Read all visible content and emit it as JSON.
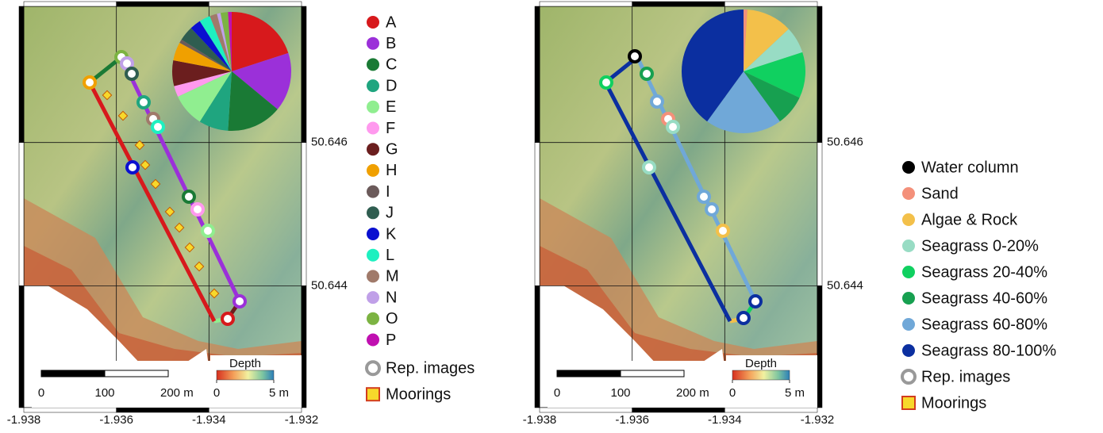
{
  "chart_data": [
    {
      "type": "map",
      "xlim": [
        -1.938,
        -1.932
      ],
      "ylim": [
        50.6423,
        50.6479
      ],
      "xticks": [
        -1.938,
        -1.936,
        -1.934,
        -1.932
      ],
      "yticks": [
        50.646,
        50.644
      ],
      "grid": true,
      "categories": [
        "A",
        "B",
        "C",
        "D",
        "E",
        "F",
        "G",
        "H",
        "I",
        "J",
        "K",
        "L",
        "M",
        "N",
        "O",
        "P"
      ],
      "colors": [
        "#d7191c",
        "#9b30d9",
        "#1a7a35",
        "#1fa57f",
        "#90ee90",
        "#ff99ee",
        "#6b1e1e",
        "#f0a000",
        "#6b5a5a",
        "#2f5d50",
        "#0a10d0",
        "#1ef0c0",
        "#a07a6a",
        "#c0a0e8",
        "#7cb342",
        "#c010b0"
      ],
      "values": [
        20,
        16,
        15,
        8,
        9,
        3,
        7,
        5,
        1,
        4,
        3,
        3,
        2,
        1,
        2,
        1
      ],
      "legend_extra": [
        "Rep. images",
        "Moorings"
      ],
      "scale_bar": [
        0,
        100,
        {
          "value": 200,
          "label": "200 m"
        }
      ],
      "colorbar": {
        "title": "Depth",
        "ticks": [
          0,
          {
            "value": 5,
            "label": "5 m"
          }
        ]
      }
    },
    {
      "type": "map",
      "xlim": [
        -1.938,
        -1.932
      ],
      "ylim": [
        50.6423,
        50.6479
      ],
      "xticks": [
        -1.938,
        -1.936,
        -1.934,
        -1.932
      ],
      "yticks": [
        50.646,
        50.644
      ],
      "grid": true,
      "categories": [
        "Water column",
        "Sand",
        "Algae & Rock",
        "Seagrass 0-20%",
        "Seagrass 20-40%",
        "Seagrass 40-60%",
        "Seagrass 60-80%",
        "Seagrass 80-100%"
      ],
      "colors": [
        "#000000",
        "#f4907a",
        "#f3c04a",
        "#98dcc4",
        "#10d060",
        "#17a050",
        "#70a8d8",
        "#0b2fa0"
      ],
      "values": [
        0,
        1,
        12,
        7,
        12,
        8,
        20,
        40
      ],
      "legend_extra": [
        "Rep. images",
        "Moorings"
      ],
      "scale_bar": [
        0,
        100,
        {
          "value": 200,
          "label": "200 m"
        }
      ],
      "colorbar": {
        "title": "Depth",
        "ticks": [
          0,
          {
            "value": 5,
            "label": "5 m"
          }
        ]
      }
    }
  ]
}
